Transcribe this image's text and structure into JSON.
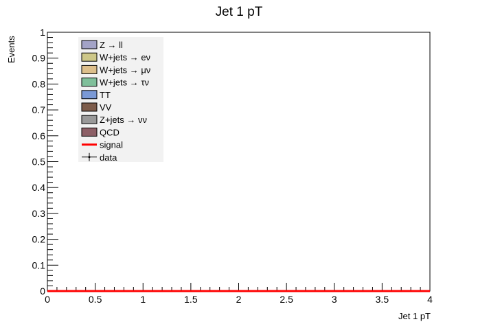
{
  "chart_data": {
    "type": "histogram-stack",
    "title": "Jet 1 pT",
    "xlabel": "Jet 1 pT",
    "ylabel": "Events",
    "xlim": [
      0,
      4
    ],
    "ylim": [
      0,
      1
    ],
    "x_ticks": [
      "0",
      "0.5",
      "1",
      "1.5",
      "2",
      "2.5",
      "3",
      "3.5",
      "4"
    ],
    "y_ticks": [
      "0",
      "0.1",
      "0.2",
      "0.3",
      "0.4",
      "0.5",
      "0.6",
      "0.7",
      "0.8",
      "0.9",
      "1"
    ],
    "grid": false,
    "legend_position": "top-left",
    "legend": [
      {
        "label": "Z → ll",
        "kind": "fill",
        "color": "#a3a3c7"
      },
      {
        "label": "W+jets → eν",
        "kind": "fill",
        "color": "#cdc788"
      },
      {
        "label": "W+jets → μν",
        "kind": "fill",
        "color": "#ddbf8c"
      },
      {
        "label": "W+jets → τν",
        "kind": "fill",
        "color": "#7fbf9a"
      },
      {
        "label": "TT",
        "kind": "fill",
        "color": "#7a99d6"
      },
      {
        "label": "VV",
        "kind": "fill",
        "color": "#7d5c4b"
      },
      {
        "label": "Z+jets → νν",
        "kind": "fill",
        "color": "#999999"
      },
      {
        "label": "QCD",
        "kind": "fill",
        "color": "#8c5f66"
      },
      {
        "label": "signal",
        "kind": "line",
        "color": "#ff0000"
      },
      {
        "label": "data",
        "kind": "marker",
        "color": "#000000"
      }
    ],
    "series": [
      {
        "name": "signal",
        "x": [
          0,
          4
        ],
        "y": [
          0,
          0
        ]
      }
    ]
  }
}
